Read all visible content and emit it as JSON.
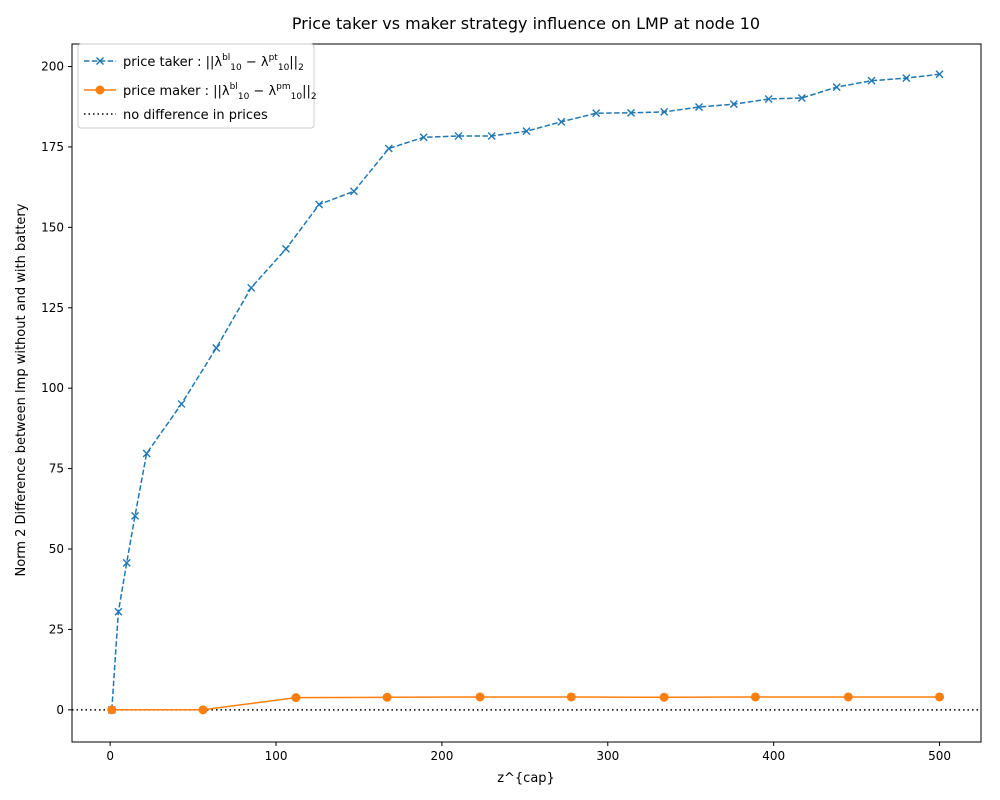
{
  "chart_data": {
    "type": "line",
    "title": "Price taker vs maker strategy influence on LMP at node 10",
    "xlabel": "z^{cap}",
    "ylabel": "Norm 2 Difference between lmp without and with battery",
    "xlim": [
      -23,
      525
    ],
    "ylim": [
      -10,
      207
    ],
    "xticks": [
      0,
      100,
      200,
      300,
      400,
      500
    ],
    "yticks": [
      0,
      25,
      50,
      75,
      100,
      125,
      150,
      175,
      200
    ],
    "xtick_labels": [
      "0",
      "100",
      "200",
      "300",
      "400",
      "500"
    ],
    "ytick_labels": [
      "0",
      "25",
      "50",
      "75",
      "100",
      "125",
      "150",
      "175",
      "200"
    ],
    "grid": false,
    "legend_position": "top-left",
    "series": [
      {
        "name": "price taker : ||λ10bl − λ10pt||2",
        "label_base": "price taker : ||λ",
        "label_sup1": "bl",
        "label_sub1": "10",
        "label_mid": " − λ",
        "label_sup2": "pt",
        "label_sub2": "10",
        "label_end": "||",
        "label_sub3": "2",
        "color": "#1f77b4",
        "line_style": "dashed",
        "marker": "x",
        "x": [
          1,
          5,
          10,
          15,
          22,
          43,
          64,
          85,
          106,
          126,
          147,
          168,
          189,
          210,
          230,
          251,
          272,
          293,
          314,
          334,
          355,
          376,
          397,
          417,
          438,
          459,
          480,
          500
        ],
        "y": [
          0,
          30.5,
          45.7,
          60.3,
          79.7,
          95.1,
          112.5,
          131.2,
          143.3,
          157.1,
          161.2,
          174.5,
          178,
          178.4,
          178.4,
          179.9,
          182.8,
          185.5,
          185.6,
          185.9,
          187.4,
          188.3,
          189.9,
          190.2,
          193.6,
          195.6,
          196.4,
          197.6
        ]
      },
      {
        "name": "price maker : ||λ10bl − λ10pm||2",
        "label_base": "price maker : ||λ",
        "label_sup1": "bl",
        "label_sub1": "10",
        "label_mid": " − λ",
        "label_sup2": "pm",
        "label_sub2": "10",
        "label_end": "||",
        "label_sub3": "2",
        "color": "#ff7f0e",
        "line_style": "solid",
        "marker": "o",
        "x": [
          1,
          56,
          112,
          167,
          223,
          278,
          334,
          389,
          445,
          500
        ],
        "y": [
          0,
          0,
          3.8,
          3.9,
          4.0,
          4.0,
          3.9,
          4.0,
          4.0,
          4.0
        ]
      },
      {
        "name": "no difference in prices",
        "color": "#000000",
        "line_style": "dotted",
        "marker": "none",
        "y_constant": 0
      }
    ]
  }
}
